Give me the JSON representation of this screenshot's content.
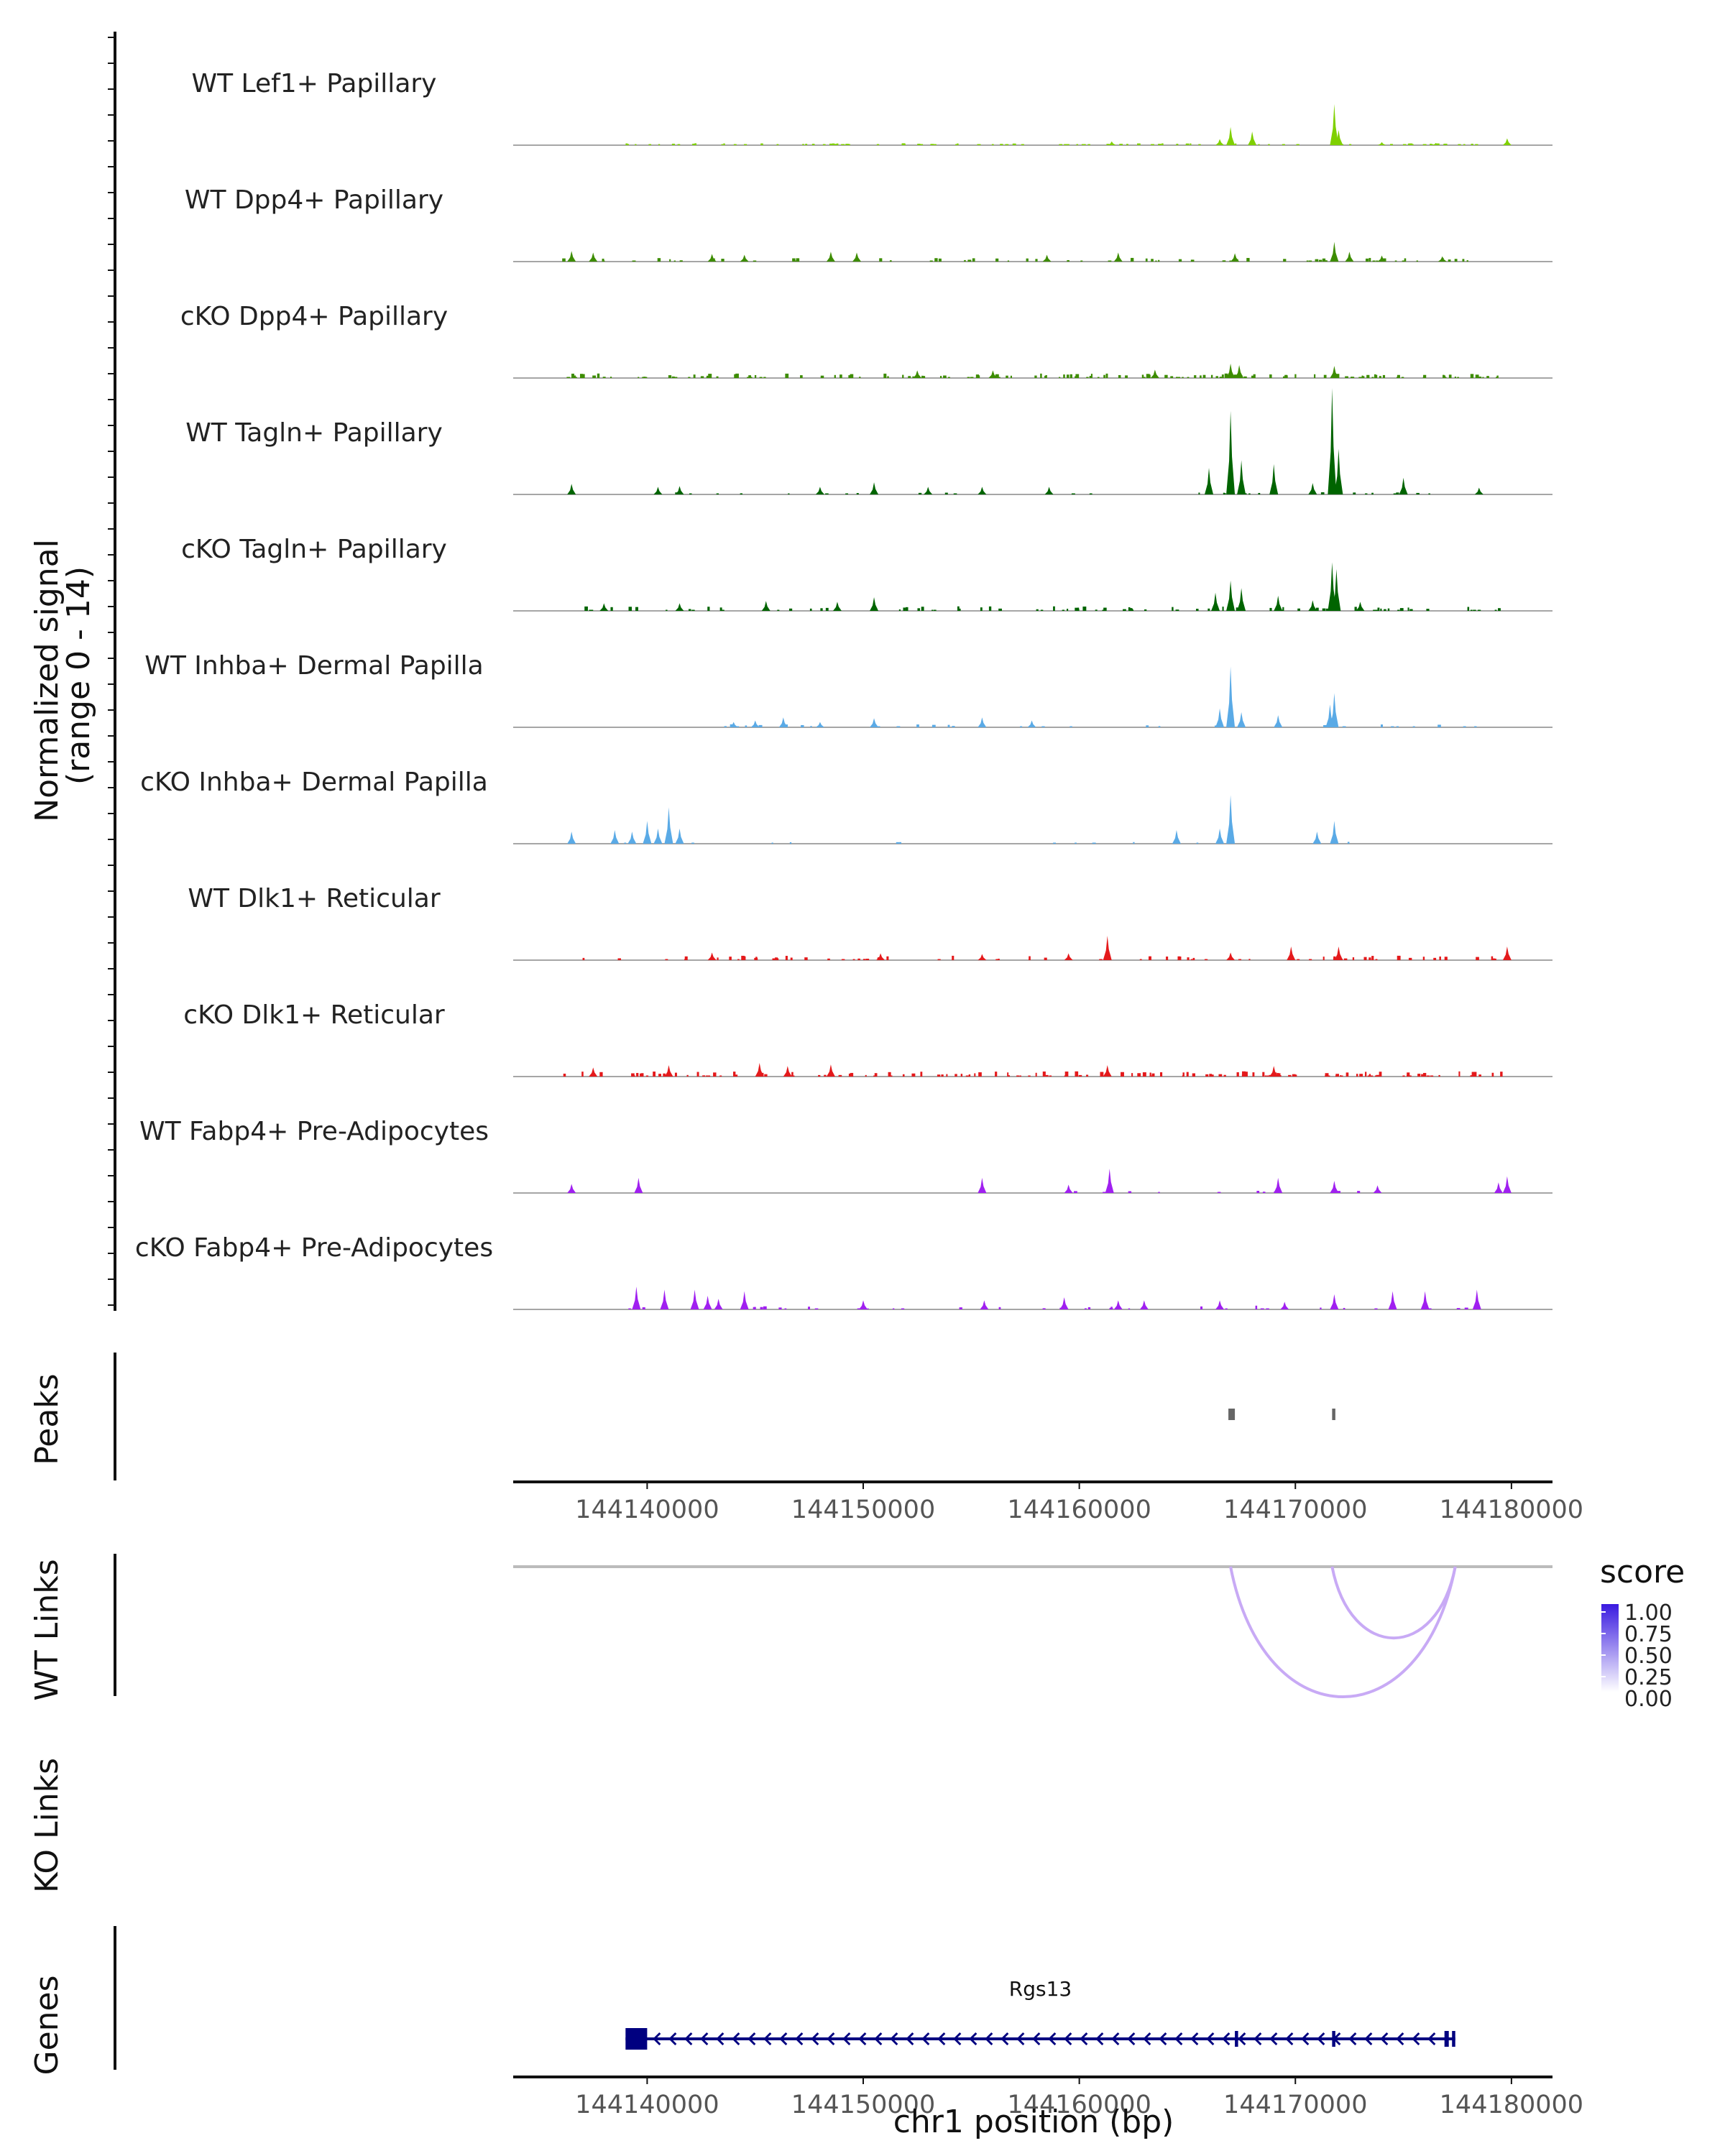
{
  "figure": {
    "signal_axis_label_line1": "Normalized signal",
    "signal_axis_label_line2": "(range 0 - 14)",
    "peaks_label": "Peaks",
    "wt_links_label": "WT Links",
    "ko_links_label": "KO Links",
    "genes_label": "Genes",
    "x_axis_title": "chr1 position (bp)",
    "legend_title": "score"
  },
  "colors": {
    "lef1": "#7fd000",
    "dpp4": "#3c8c00",
    "tagln": "#006400",
    "inhba": "#5aaae6",
    "dlk1": "#e41a1c",
    "fabp4": "#a020f0",
    "peak": "#666666",
    "link": "#c8aaf5",
    "gene": "#000080",
    "baseline": "#888888"
  },
  "chart_data": {
    "type": "genome-coverage",
    "chromosome": "chr1",
    "xlim": [
      144133800,
      144181900
    ],
    "x_ticks": [
      144140000,
      144150000,
      144160000,
      144170000,
      144180000
    ],
    "x_tick_labels": [
      "144140000",
      "144150000",
      "144160000",
      "144170000",
      "144180000"
    ],
    "signal_range": [
      0,
      14
    ],
    "tracks": [
      {
        "name": "WT Lef1+ Papillary",
        "color_key": "lef1",
        "peaks": [
          [
            144167000,
            2.4
          ],
          [
            144168000,
            1.8
          ],
          [
            144171800,
            5.4
          ],
          [
            144172000,
            2.0
          ],
          [
            144166500,
            0.8
          ],
          [
            144179800,
            0.9
          ],
          [
            144161500,
            0.5
          ],
          [
            144174000,
            0.4
          ],
          [
            144176500,
            0.3
          ]
        ],
        "noise": [
          [
            144139000,
            144180000,
            0.25,
            90
          ]
        ]
      },
      {
        "name": "WT Dpp4+ Papillary",
        "color_key": "dpp4",
        "peaks": [
          [
            144136500,
            1.4
          ],
          [
            144137500,
            1.2
          ],
          [
            144143000,
            1.0
          ],
          [
            144144500,
            0.9
          ],
          [
            144148500,
            1.3
          ],
          [
            144149700,
            1.2
          ],
          [
            144158500,
            0.9
          ],
          [
            144161800,
            1.2
          ],
          [
            144171800,
            2.6
          ],
          [
            144172500,
            1.3
          ],
          [
            144167200,
            1.1
          ],
          [
            144174000,
            0.8
          ],
          [
            144176800,
            0.7
          ]
        ],
        "noise": [
          [
            144136000,
            144179000,
            0.5,
            70
          ]
        ]
      },
      {
        "name": "cKO Dpp4+ Papillary",
        "color_key": "dpp4",
        "peaks": [
          [
            144167000,
            1.9
          ],
          [
            144167400,
            1.7
          ],
          [
            144171800,
            1.6
          ],
          [
            144163500,
            1.1
          ],
          [
            144156000,
            1.0
          ],
          [
            144152500,
            1.0
          ]
        ],
        "noise": [
          [
            144136000,
            144179500,
            0.6,
            150
          ]
        ]
      },
      {
        "name": "WT Tagln+ Papillary",
        "color_key": "tagln",
        "peaks": [
          [
            144167000,
            11.0
          ],
          [
            144166000,
            3.5
          ],
          [
            144167500,
            4.5
          ],
          [
            144169000,
            4.0
          ],
          [
            144171700,
            14.0
          ],
          [
            144172000,
            6.0
          ],
          [
            144170800,
            1.5
          ],
          [
            144175000,
            2.2
          ],
          [
            144136500,
            1.4
          ],
          [
            144140500,
            1.0
          ],
          [
            144141500,
            1.1
          ],
          [
            144150500,
            1.6
          ],
          [
            144153000,
            1.0
          ],
          [
            144155500,
            1.0
          ],
          [
            144158600,
            1.0
          ],
          [
            144178500,
            0.9
          ],
          [
            144148000,
            1.0
          ]
        ],
        "noise": [
          [
            144140000,
            144178000,
            0.3,
            30
          ]
        ]
      },
      {
        "name": "cKO Tagln+ Papillary",
        "color_key": "tagln",
        "peaks": [
          [
            144167000,
            4.0
          ],
          [
            144166300,
            2.4
          ],
          [
            144167500,
            3.0
          ],
          [
            144169200,
            2.0
          ],
          [
            144171700,
            6.4
          ],
          [
            144171900,
            5.5
          ],
          [
            144170800,
            1.4
          ],
          [
            144173000,
            1.2
          ],
          [
            144138000,
            1.0
          ],
          [
            144145500,
            1.3
          ],
          [
            144150500,
            1.8
          ],
          [
            144141500,
            1.0
          ],
          [
            144148800,
            1.2
          ]
        ],
        "noise": [
          [
            144136500,
            144180000,
            0.6,
            90
          ]
        ]
      },
      {
        "name": "WT Inhba+ Dermal Papilla",
        "color_key": "inhba",
        "peaks": [
          [
            144167000,
            8.0
          ],
          [
            144166500,
            2.5
          ],
          [
            144167500,
            2.0
          ],
          [
            144171800,
            4.5
          ],
          [
            144171600,
            3.0
          ],
          [
            144169200,
            1.6
          ],
          [
            144155500,
            1.3
          ],
          [
            144157800,
            0.9
          ],
          [
            144150500,
            1.2
          ],
          [
            144146300,
            1.3
          ],
          [
            144145000,
            0.9
          ],
          [
            144144000,
            0.7
          ],
          [
            144148000,
            0.7
          ]
        ],
        "noise": [
          [
            144143500,
            144178500,
            0.4,
            35
          ]
        ]
      },
      {
        "name": "cKO Inhba+ Dermal Papilla",
        "color_key": "inhba",
        "peaks": [
          [
            144140000,
            3.0
          ],
          [
            144141000,
            4.8
          ],
          [
            144140500,
            2.0
          ],
          [
            144139300,
            1.6
          ],
          [
            144141500,
            2.0
          ],
          [
            144136500,
            1.6
          ],
          [
            144138500,
            1.8
          ],
          [
            144164500,
            1.8
          ],
          [
            144166500,
            2.0
          ],
          [
            144167000,
            6.4
          ],
          [
            144171000,
            1.6
          ],
          [
            144171800,
            3.0
          ]
        ],
        "noise": [
          [
            144138000,
            144173000,
            0.3,
            14
          ]
        ]
      },
      {
        "name": "WT Dlk1+ Reticular",
        "color_key": "dlk1",
        "peaks": [
          [
            144161300,
            3.2
          ],
          [
            144169800,
            1.8
          ],
          [
            144172000,
            1.8
          ],
          [
            144179800,
            1.8
          ],
          [
            144143000,
            1.0
          ],
          [
            144150800,
            0.9
          ],
          [
            144155500,
            0.8
          ],
          [
            144159500,
            0.9
          ],
          [
            144167000,
            1.0
          ]
        ],
        "noise": [
          [
            144137000,
            144180000,
            0.6,
            70
          ]
        ]
      },
      {
        "name": "cKO Dlk1+ Reticular",
        "color_key": "dlk1",
        "peaks": [
          [
            144145200,
            1.8
          ],
          [
            144146500,
            1.4
          ],
          [
            144148500,
            1.6
          ],
          [
            144141000,
            1.5
          ],
          [
            144161300,
            1.5
          ],
          [
            144169000,
            1.4
          ],
          [
            144137500,
            1.2
          ]
        ],
        "noise": [
          [
            144136000,
            144180000,
            0.7,
            140
          ]
        ]
      },
      {
        "name": "WT Fabp4+ Pre-Adipocytes",
        "color_key": "fabp4",
        "peaks": [
          [
            144161400,
            3.2
          ],
          [
            144179800,
            2.2
          ],
          [
            144139600,
            2.0
          ],
          [
            144155500,
            2.0
          ],
          [
            144169200,
            2.0
          ],
          [
            144171800,
            1.6
          ],
          [
            144136500,
            1.2
          ],
          [
            144159500,
            1.1
          ],
          [
            144173800,
            1.0
          ],
          [
            144179400,
            1.4
          ]
        ],
        "noise": [
          [
            144159000,
            144175000,
            0.3,
            10
          ]
        ]
      },
      {
        "name": "cKO Fabp4+ Pre-Adipocytes",
        "color_key": "fabp4",
        "peaks": [
          [
            144139500,
            3.0
          ],
          [
            144140800,
            2.6
          ],
          [
            144142200,
            2.6
          ],
          [
            144144500,
            2.4
          ],
          [
            144178400,
            2.6
          ],
          [
            144176000,
            2.4
          ],
          [
            144174500,
            2.4
          ],
          [
            144171800,
            2.0
          ],
          [
            144159300,
            1.6
          ],
          [
            144150000,
            1.2
          ],
          [
            144155600,
            1.2
          ],
          [
            144161800,
            1.2
          ],
          [
            144163000,
            1.2
          ],
          [
            144166500,
            1.2
          ],
          [
            144142800,
            1.8
          ],
          [
            144143300,
            1.4
          ],
          [
            144169500,
            1.0
          ]
        ],
        "noise": [
          [
            144139000,
            144179000,
            0.5,
            35
          ]
        ]
      }
    ],
    "peaks": [
      [
        144166900,
        144167200
      ],
      [
        144171700,
        144171850
      ]
    ],
    "links_wt": [
      [
        144167000,
        144177400,
        0.35
      ],
      [
        144171700,
        144177400,
        0.35
      ]
    ],
    "links_ko": [],
    "score_legend": {
      "ticks": [
        "1.00",
        "0.75",
        "0.50",
        "0.25",
        "0.00"
      ],
      "range": [
        0,
        1
      ]
    },
    "gene": {
      "name": "Rgs13",
      "strand": "-",
      "start": 144139000,
      "end": 144177400,
      "exons": [
        [
          144139000,
          144140000
        ],
        [
          144167200,
          144167350
        ],
        [
          144171700,
          144171850
        ],
        [
          144176900,
          144177100
        ],
        [
          144177250,
          144177400
        ]
      ]
    }
  }
}
